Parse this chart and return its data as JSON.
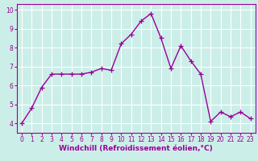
{
  "x": [
    0,
    1,
    2,
    3,
    4,
    5,
    6,
    7,
    8,
    9,
    10,
    11,
    12,
    13,
    14,
    15,
    16,
    17,
    18,
    19,
    20,
    21,
    22,
    23
  ],
  "y": [
    4.0,
    4.8,
    5.9,
    6.6,
    6.6,
    6.6,
    6.6,
    6.7,
    6.9,
    6.8,
    8.2,
    8.7,
    9.4,
    9.8,
    8.5,
    6.9,
    8.1,
    7.3,
    6.6,
    4.1,
    4.6,
    4.35,
    4.6,
    4.25
  ],
  "line_color": "#990099",
  "marker": "+",
  "marker_size": 4,
  "bg_color": "#cceee8",
  "grid_color": "#ffffff",
  "xlabel": "Windchill (Refroidissement éolien,°C)",
  "xlim": [
    -0.5,
    23.5
  ],
  "ylim": [
    3.5,
    10.3
  ],
  "yticks": [
    4,
    5,
    6,
    7,
    8,
    9,
    10
  ],
  "xticks": [
    0,
    1,
    2,
    3,
    4,
    5,
    6,
    7,
    8,
    9,
    10,
    11,
    12,
    13,
    14,
    15,
    16,
    17,
    18,
    19,
    20,
    21,
    22,
    23
  ],
  "tick_fontsize": 5.5,
  "xlabel_fontsize": 6.5,
  "line_width": 1.0,
  "marker_edge_width": 0.9
}
